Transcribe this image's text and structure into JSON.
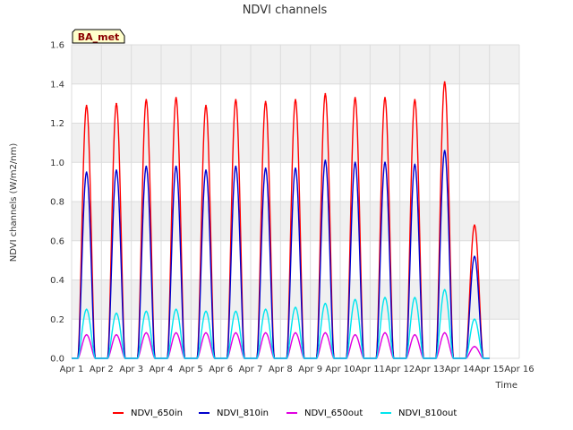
{
  "chart_data": {
    "type": "line",
    "title": "NDVI channels",
    "xlabel": "Time",
    "ylabel": "NDVI channels (W/m2/nm)",
    "badge": "BA_met",
    "ylim": [
      0,
      1.6
    ],
    "xlim": [
      1,
      16
    ],
    "grid": true,
    "legend_position": "bottom",
    "y_ticks": [
      "0.0",
      "0.2",
      "0.4",
      "0.6",
      "0.8",
      "1.0",
      "1.2",
      "1.4",
      "1.6"
    ],
    "x_ticks": [
      "Apr 1",
      "Apr 2",
      "Apr 3",
      "Apr 4",
      "Apr 5",
      "Apr 6",
      "Apr 7",
      "Apr 8",
      "Apr 9",
      "Apr 10",
      "Apr 11",
      "Apr 12",
      "Apr 13",
      "Apr 14",
      "Apr 15",
      "Apr 16"
    ],
    "series": [
      {
        "name": "NDVI_650in",
        "color": "#ff0000",
        "x": [
          1.5,
          2.5,
          3.5,
          4.5,
          5.5,
          6.5,
          7.5,
          8.5,
          9.5,
          10.5,
          11.5,
          12.5,
          13.5,
          14.5
        ],
        "values": [
          1.29,
          1.3,
          1.32,
          1.33,
          1.29,
          1.32,
          1.31,
          1.32,
          1.35,
          1.33,
          1.33,
          1.32,
          1.41,
          0.68
        ]
      },
      {
        "name": "NDVI_810in",
        "color": "#0000cc",
        "x": [
          1.5,
          2.5,
          3.5,
          4.5,
          5.5,
          6.5,
          7.5,
          8.5,
          9.5,
          10.5,
          11.5,
          12.5,
          13.5,
          14.5
        ],
        "values": [
          0.95,
          0.96,
          0.98,
          0.98,
          0.96,
          0.98,
          0.97,
          0.97,
          1.01,
          1.0,
          1.0,
          0.99,
          1.06,
          0.52
        ]
      },
      {
        "name": "NDVI_650out",
        "color": "#e000e0",
        "x": [
          1.5,
          2.5,
          3.5,
          4.5,
          5.5,
          6.5,
          7.5,
          8.5,
          9.5,
          10.5,
          11.5,
          12.5,
          13.5,
          14.5
        ],
        "values": [
          0.12,
          0.12,
          0.13,
          0.13,
          0.13,
          0.13,
          0.13,
          0.13,
          0.13,
          0.12,
          0.13,
          0.12,
          0.13,
          0.06
        ]
      },
      {
        "name": "NDVI_810out",
        "color": "#00e5ee",
        "x": [
          1.5,
          2.5,
          3.5,
          4.5,
          5.5,
          6.5,
          7.5,
          8.5,
          9.5,
          10.5,
          11.5,
          12.5,
          13.5,
          14.5
        ],
        "values": [
          0.25,
          0.23,
          0.24,
          0.25,
          0.24,
          0.24,
          0.25,
          0.26,
          0.28,
          0.3,
          0.31,
          0.31,
          0.35,
          0.2
        ]
      }
    ]
  }
}
